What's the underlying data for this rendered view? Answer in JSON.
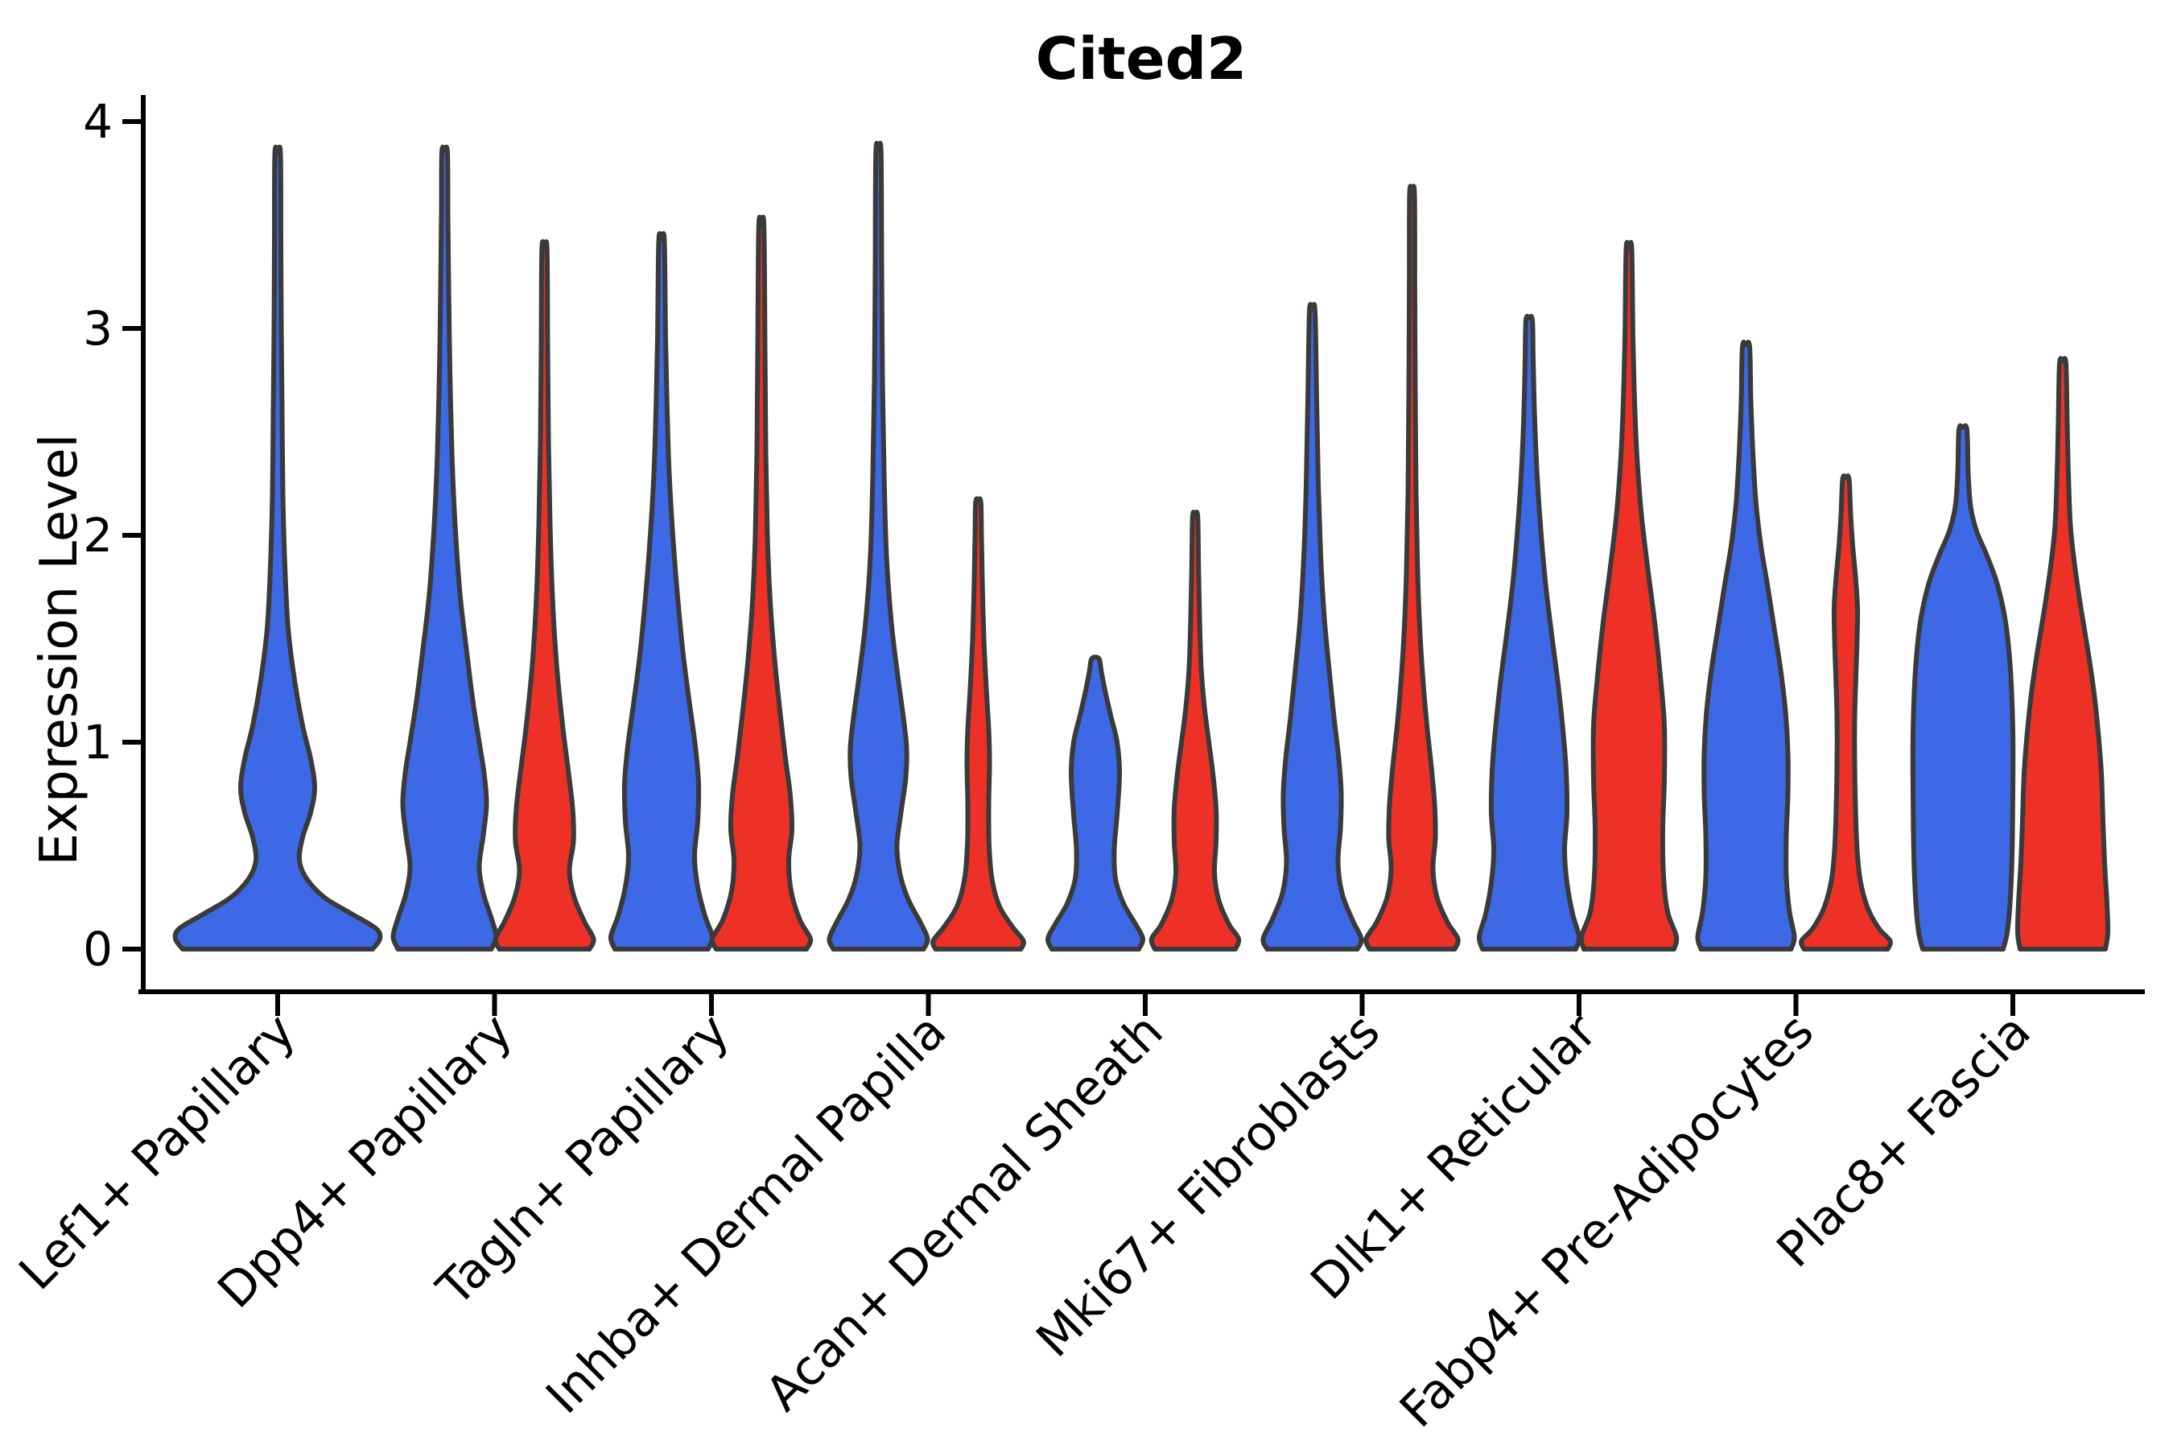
{
  "chart_data": {
    "type": "violin",
    "title": "Cited2",
    "ylabel": "Expression Level",
    "xlabel": "",
    "ylim": [
      0,
      4
    ],
    "yticks": [
      0,
      1,
      2,
      3,
      4
    ],
    "grid": false,
    "legend_position": "none",
    "x_tick_rotation_deg": 45,
    "categories": [
      "Lef1+ Papillary",
      "Dpp4+ Papillary",
      "Tagln+ Papillary",
      "Inhba+ Dermal Papilla",
      "Acan+ Dermal Sheath",
      "Mki67+ Fibroblasts",
      "Dlk1+ Reticular",
      "Fabp4+ Pre-Adipocytes",
      "Plac8+ Fascia"
    ],
    "colors": {
      "blue": "#3D68E6",
      "red": "#EE3126",
      "outline": "#3A3A3A",
      "axis": "#000000",
      "background": "#FFFFFF"
    },
    "violins": [
      {
        "category": "Lef1+ Papillary",
        "group": 0,
        "side": "center",
        "color": "blue",
        "max_expression": 3.84,
        "profile": [
          [
            0,
            118
          ],
          [
            0.05,
            127
          ],
          [
            0.1,
            122
          ],
          [
            0.17,
            92
          ],
          [
            0.25,
            58
          ],
          [
            0.34,
            36
          ],
          [
            0.43,
            27
          ],
          [
            0.54,
            31
          ],
          [
            0.66,
            41
          ],
          [
            0.78,
            46
          ],
          [
            0.92,
            41
          ],
          [
            1.08,
            31
          ],
          [
            1.3,
            21
          ],
          [
            1.55,
            13
          ],
          [
            1.85,
            9
          ],
          [
            2.2,
            6.5
          ],
          [
            2.6,
            5.5
          ],
          [
            3.0,
            4.5
          ],
          [
            3.4,
            4
          ],
          [
            3.84,
            3.5
          ]
        ]
      },
      {
        "category": "Dpp4+ Papillary",
        "group": 1,
        "side": "left",
        "color": "blue",
        "max_expression": 3.85,
        "profile": [
          [
            0,
            58
          ],
          [
            0.06,
            64
          ],
          [
            0.15,
            58
          ],
          [
            0.27,
            48
          ],
          [
            0.4,
            43
          ],
          [
            0.55,
            48
          ],
          [
            0.7,
            52
          ],
          [
            0.85,
            49
          ],
          [
            1.0,
            43
          ],
          [
            1.2,
            35
          ],
          [
            1.45,
            27
          ],
          [
            1.72,
            19
          ],
          [
            2.05,
            13
          ],
          [
            2.4,
            9
          ],
          [
            2.8,
            6.5
          ],
          [
            3.2,
            5
          ],
          [
            3.55,
            4
          ],
          [
            3.85,
            3.5
          ]
        ]
      },
      {
        "category": "Dpp4+ Papillary",
        "group": 1,
        "side": "right",
        "color": "red",
        "max_expression": 3.38,
        "profile": [
          [
            0,
            56
          ],
          [
            0.05,
            61
          ],
          [
            0.13,
            50
          ],
          [
            0.25,
            37
          ],
          [
            0.38,
            31
          ],
          [
            0.52,
            36
          ],
          [
            0.68,
            35
          ],
          [
            0.88,
            29
          ],
          [
            1.1,
            22
          ],
          [
            1.38,
            15
          ],
          [
            1.7,
            10
          ],
          [
            2.05,
            7
          ],
          [
            2.45,
            5
          ],
          [
            2.9,
            4
          ],
          [
            3.38,
            3.2
          ]
        ]
      },
      {
        "category": "Tagln+ Papillary",
        "group": 2,
        "side": "left",
        "color": "blue",
        "max_expression": 3.42,
        "profile": [
          [
            0,
            58
          ],
          [
            0.06,
            63
          ],
          [
            0.16,
            54
          ],
          [
            0.3,
            45
          ],
          [
            0.45,
            41
          ],
          [
            0.62,
            45
          ],
          [
            0.8,
            46
          ],
          [
            0.98,
            42
          ],
          [
            1.18,
            35
          ],
          [
            1.42,
            27
          ],
          [
            1.7,
            20
          ],
          [
            2.0,
            14
          ],
          [
            2.3,
            9.5
          ],
          [
            2.6,
            7
          ],
          [
            2.95,
            5
          ],
          [
            3.42,
            3.5
          ]
        ]
      },
      {
        "category": "Tagln+ Papillary",
        "group": 2,
        "side": "right",
        "color": "red",
        "max_expression": 3.49,
        "profile": [
          [
            0,
            56
          ],
          [
            0.05,
            61
          ],
          [
            0.14,
            48
          ],
          [
            0.28,
            37
          ],
          [
            0.43,
            34
          ],
          [
            0.58,
            38
          ],
          [
            0.74,
            36
          ],
          [
            0.92,
            30
          ],
          [
            1.12,
            24
          ],
          [
            1.38,
            17
          ],
          [
            1.68,
            11
          ],
          [
            2.0,
            7.5
          ],
          [
            2.4,
            5.5
          ],
          [
            2.9,
            4.5
          ],
          [
            3.49,
            3.2
          ]
        ]
      },
      {
        "category": "Inhba+ Dermal Papilla",
        "group": 3,
        "side": "left",
        "color": "blue",
        "max_expression": 3.85,
        "profile": [
          [
            0,
            56
          ],
          [
            0.05,
            61
          ],
          [
            0.13,
            52
          ],
          [
            0.24,
            37
          ],
          [
            0.36,
            27
          ],
          [
            0.5,
            23
          ],
          [
            0.66,
            28
          ],
          [
            0.83,
            34
          ],
          [
            0.97,
            35
          ],
          [
            1.12,
            31
          ],
          [
            1.32,
            24
          ],
          [
            1.58,
            16
          ],
          [
            1.9,
            10
          ],
          [
            2.3,
            7
          ],
          [
            2.75,
            5
          ],
          [
            3.3,
            4
          ],
          [
            3.85,
            3.2
          ]
        ]
      },
      {
        "category": "Inhba+ Dermal Papilla",
        "group": 3,
        "side": "right",
        "color": "red",
        "max_expression": 2.16,
        "profile": [
          [
            0,
            53
          ],
          [
            0.04,
            56
          ],
          [
            0.11,
            42
          ],
          [
            0.21,
            26
          ],
          [
            0.34,
            17
          ],
          [
            0.5,
            13.5
          ],
          [
            0.7,
            13
          ],
          [
            0.9,
            14
          ],
          [
            1.06,
            13
          ],
          [
            1.26,
            10
          ],
          [
            1.5,
            7
          ],
          [
            1.78,
            5
          ],
          [
            2.0,
            4
          ],
          [
            2.16,
            3.2
          ]
        ]
      },
      {
        "category": "Acan+ Dermal Sheath",
        "group": 4,
        "side": "left",
        "color": "blue",
        "max_expression": 1.4,
        "profile": [
          [
            0,
            54
          ],
          [
            0.05,
            59
          ],
          [
            0.12,
            50
          ],
          [
            0.22,
            35
          ],
          [
            0.34,
            25
          ],
          [
            0.48,
            23.5
          ],
          [
            0.65,
            27
          ],
          [
            0.85,
            30
          ],
          [
            1.0,
            27
          ],
          [
            1.13,
            19
          ],
          [
            1.25,
            12
          ],
          [
            1.34,
            7.5
          ],
          [
            1.4,
            5
          ]
        ]
      },
      {
        "category": "Acan+ Dermal Sheath",
        "group": 4,
        "side": "right",
        "color": "red",
        "max_expression": 2.09,
        "profile": [
          [
            0,
            50
          ],
          [
            0.05,
            54
          ],
          [
            0.12,
            42
          ],
          [
            0.24,
            29
          ],
          [
            0.37,
            24
          ],
          [
            0.52,
            26
          ],
          [
            0.68,
            26
          ],
          [
            0.85,
            22
          ],
          [
            1.0,
            17
          ],
          [
            1.17,
            11.5
          ],
          [
            1.36,
            7.5
          ],
          [
            1.6,
            5.5
          ],
          [
            1.85,
            4.2
          ],
          [
            2.09,
            3.2
          ]
        ]
      },
      {
        "category": "Mki67+ Fibroblasts",
        "group": 5,
        "side": "left",
        "color": "blue",
        "max_expression": 3.08,
        "profile": [
          [
            0,
            56
          ],
          [
            0.05,
            61
          ],
          [
            0.14,
            50
          ],
          [
            0.27,
            37
          ],
          [
            0.42,
            32
          ],
          [
            0.58,
            35
          ],
          [
            0.75,
            36
          ],
          [
            0.92,
            33
          ],
          [
            1.12,
            27
          ],
          [
            1.35,
            21
          ],
          [
            1.6,
            15
          ],
          [
            1.9,
            10.5
          ],
          [
            2.25,
            7.5
          ],
          [
            2.65,
            5.5
          ],
          [
            3.08,
            3.5
          ]
        ]
      },
      {
        "category": "Mki67+ Fibroblasts",
        "group": 5,
        "side": "right",
        "color": "red",
        "max_expression": 3.65,
        "profile": [
          [
            0,
            53
          ],
          [
            0.05,
            57
          ],
          [
            0.13,
            44
          ],
          [
            0.25,
            31
          ],
          [
            0.39,
            26
          ],
          [
            0.54,
            29
          ],
          [
            0.7,
            28
          ],
          [
            0.88,
            24
          ],
          [
            1.06,
            19
          ],
          [
            1.28,
            14
          ],
          [
            1.52,
            10
          ],
          [
            1.82,
            7
          ],
          [
            2.2,
            5
          ],
          [
            2.7,
            4
          ],
          [
            3.2,
            3.4
          ],
          [
            3.65,
            3
          ]
        ]
      },
      {
        "category": "Dlk1+ Reticular",
        "group": 6,
        "side": "left",
        "color": "blue",
        "max_expression": 3.04,
        "profile": [
          [
            0,
            58
          ],
          [
            0.06,
            62
          ],
          [
            0.17,
            54
          ],
          [
            0.32,
            47
          ],
          [
            0.48,
            44
          ],
          [
            0.66,
            47
          ],
          [
            0.86,
            46
          ],
          [
            1.06,
            42
          ],
          [
            1.28,
            36
          ],
          [
            1.52,
            28
          ],
          [
            1.78,
            20
          ],
          [
            2.05,
            14
          ],
          [
            2.32,
            9.5
          ],
          [
            2.6,
            6.5
          ],
          [
            2.85,
            5
          ],
          [
            3.04,
            4
          ]
        ]
      },
      {
        "category": "Dlk1+ Reticular",
        "group": 6,
        "side": "right",
        "color": "red",
        "max_expression": 3.38,
        "profile": [
          [
            0,
            56
          ],
          [
            0.06,
            59
          ],
          [
            0.18,
            48
          ],
          [
            0.35,
            43
          ],
          [
            0.58,
            42
          ],
          [
            0.82,
            44
          ],
          [
            1.08,
            44
          ],
          [
            1.32,
            39
          ],
          [
            1.58,
            32
          ],
          [
            1.85,
            23
          ],
          [
            2.1,
            15.5
          ],
          [
            2.38,
            10
          ],
          [
            2.65,
            7
          ],
          [
            2.95,
            5
          ],
          [
            3.38,
            3.5
          ]
        ]
      },
      {
        "category": "Fabp4+ Pre-Adipocytes",
        "group": 7,
        "side": "left",
        "color": "blue",
        "max_expression": 2.91,
        "profile": [
          [
            0,
            56
          ],
          [
            0.06,
            60
          ],
          [
            0.18,
            54
          ],
          [
            0.35,
            50
          ],
          [
            0.55,
            50
          ],
          [
            0.75,
            52
          ],
          [
            0.95,
            52
          ],
          [
            1.15,
            49
          ],
          [
            1.35,
            43
          ],
          [
            1.55,
            35
          ],
          [
            1.75,
            27
          ],
          [
            1.95,
            18.5
          ],
          [
            2.15,
            12.5
          ],
          [
            2.4,
            8.5
          ],
          [
            2.65,
            6
          ],
          [
            2.91,
            4.5
          ]
        ]
      },
      {
        "category": "Fabp4+ Pre-Adipocytes",
        "group": 7,
        "side": "right",
        "color": "red",
        "max_expression": 2.27,
        "profile": [
          [
            0,
            52
          ],
          [
            0.04,
            55
          ],
          [
            0.1,
            41
          ],
          [
            0.2,
            27
          ],
          [
            0.33,
            18
          ],
          [
            0.48,
            14
          ],
          [
            0.68,
            12
          ],
          [
            0.9,
            11
          ],
          [
            1.12,
            11
          ],
          [
            1.32,
            12.5
          ],
          [
            1.5,
            14
          ],
          [
            1.65,
            14.5
          ],
          [
            1.8,
            12
          ],
          [
            1.95,
            8.5
          ],
          [
            2.1,
            6
          ],
          [
            2.27,
            4
          ]
        ]
      },
      {
        "category": "Plac8+ Fascia",
        "group": 8,
        "side": "left",
        "color": "blue",
        "max_expression": 2.51,
        "profile": [
          [
            0,
            50
          ],
          [
            0.08,
            55
          ],
          [
            0.22,
            58.5
          ],
          [
            0.45,
            61
          ],
          [
            0.75,
            62
          ],
          [
            1.05,
            62
          ],
          [
            1.35,
            59
          ],
          [
            1.58,
            53
          ],
          [
            1.76,
            43
          ],
          [
            1.9,
            30
          ],
          [
            2.02,
            17
          ],
          [
            2.14,
            9.5
          ],
          [
            2.3,
            6.5
          ],
          [
            2.51,
            5
          ]
        ]
      },
      {
        "category": "Plac8+ Fascia",
        "group": 8,
        "side": "right",
        "color": "red",
        "max_expression": 2.83,
        "profile": [
          [
            0,
            53
          ],
          [
            0.08,
            56
          ],
          [
            0.22,
            55
          ],
          [
            0.42,
            52
          ],
          [
            0.62,
            50
          ],
          [
            0.85,
            48
          ],
          [
            1.05,
            44
          ],
          [
            1.25,
            38.5
          ],
          [
            1.45,
            31
          ],
          [
            1.65,
            22.5
          ],
          [
            1.85,
            15
          ],
          [
            2.05,
            9.5
          ],
          [
            2.3,
            7
          ],
          [
            2.55,
            5.5
          ],
          [
            2.83,
            4
          ]
        ]
      }
    ]
  }
}
